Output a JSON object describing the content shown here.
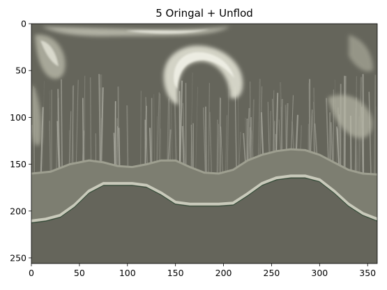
{
  "chart_data": {
    "type": "heatmap",
    "title": "5  Oringal + Unflod",
    "xlabel": "",
    "ylabel": "",
    "xlim": [
      0,
      360
    ],
    "ylim": [
      256,
      0
    ],
    "x_ticks": [
      0,
      50,
      100,
      150,
      200,
      250,
      300,
      350
    ],
    "y_ticks": [
      0,
      50,
      100,
      150,
      200,
      250
    ],
    "grid": false,
    "colors": {
      "background": "#65655b",
      "band_light": "#9e9f90",
      "band_highlight": "#c9cabb",
      "bright": "#e8e8dc",
      "edge_dark": "#2f4a35"
    },
    "upper_boundary_y": [
      [
        0,
        160
      ],
      [
        20,
        158
      ],
      [
        40,
        150
      ],
      [
        60,
        146
      ],
      [
        75,
        148
      ],
      [
        90,
        152
      ],
      [
        105,
        153
      ],
      [
        120,
        150
      ],
      [
        135,
        146
      ],
      [
        150,
        146
      ],
      [
        165,
        153
      ],
      [
        180,
        159
      ],
      [
        195,
        160
      ],
      [
        210,
        156
      ],
      [
        225,
        146
      ],
      [
        240,
        140
      ],
      [
        255,
        136
      ],
      [
        270,
        134
      ],
      [
        285,
        135
      ],
      [
        300,
        140
      ],
      [
        315,
        148
      ],
      [
        330,
        156
      ],
      [
        345,
        160
      ],
      [
        360,
        161
      ]
    ],
    "lower_boundary_y": [
      [
        0,
        212
      ],
      [
        15,
        210
      ],
      [
        30,
        206
      ],
      [
        45,
        195
      ],
      [
        60,
        180
      ],
      [
        75,
        172
      ],
      [
        90,
        172
      ],
      [
        105,
        172
      ],
      [
        120,
        174
      ],
      [
        135,
        182
      ],
      [
        150,
        192
      ],
      [
        165,
        194
      ],
      [
        180,
        194
      ],
      [
        195,
        194
      ],
      [
        210,
        193
      ],
      [
        225,
        183
      ],
      [
        240,
        172
      ],
      [
        255,
        166
      ],
      [
        270,
        164
      ],
      [
        285,
        164
      ],
      [
        300,
        168
      ],
      [
        315,
        180
      ],
      [
        330,
        194
      ],
      [
        345,
        204
      ],
      [
        360,
        210
      ]
    ]
  }
}
